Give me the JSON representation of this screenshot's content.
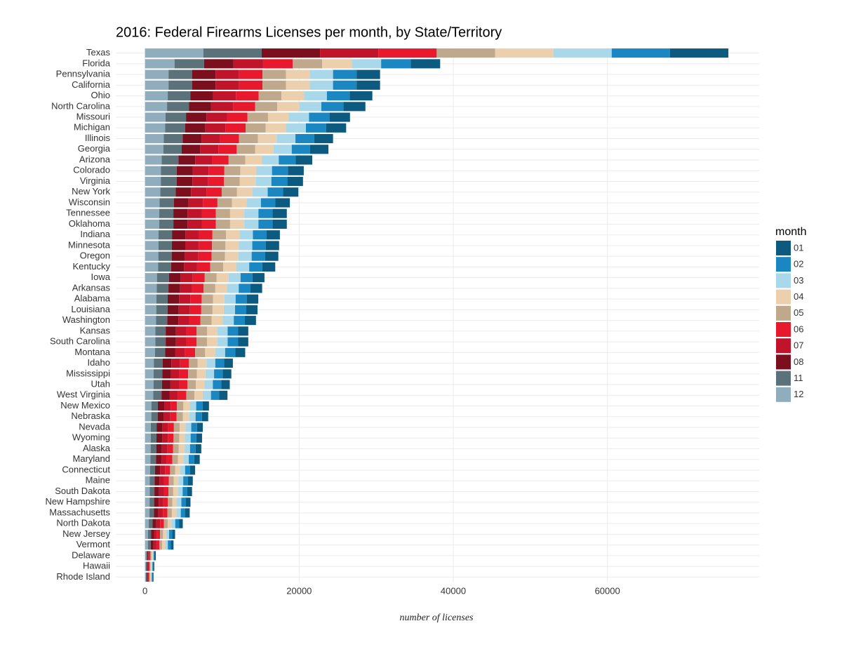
{
  "chart_data": {
    "type": "stacked-barh",
    "title": "2016: Federal Firearms Licenses per month, by State/Territory",
    "x_label": "number of licenses",
    "legend_title": "month",
    "categories": [
      "Texas",
      "Florida",
      "Pennsylvania",
      "California",
      "Ohio",
      "North Carolina",
      "Missouri",
      "Michigan",
      "Illinois",
      "Georgia",
      "Arizona",
      "Colorado",
      "Virginia",
      "New York",
      "Wisconsin",
      "Tennessee",
      "Oklahoma",
      "Indiana",
      "Minnesota",
      "Oregon",
      "Kentucky",
      "Iowa",
      "Arkansas",
      "Alabama",
      "Louisiana",
      "Washington",
      "Kansas",
      "South Carolina",
      "Montana",
      "Idaho",
      "Mississippi",
      "Utah",
      "West Virginia",
      "New Mexico",
      "Nebraska",
      "Nevada",
      "Wyoming",
      "Alaska",
      "Maryland",
      "Connecticut",
      "Maine",
      "South Dakota",
      "New Hampshire",
      "Massachusetts",
      "North Dakota",
      "New Jersey",
      "Vermont",
      "Delaware",
      "Hawaii",
      "Rhode Island"
    ],
    "series": [
      {
        "name": "01",
        "color": "#0d5a80",
        "values": [
          7570,
          3830,
          3050,
          3050,
          2950,
          2860,
          2660,
          2610,
          2440,
          2380,
          2170,
          2060,
          2050,
          1990,
          1880,
          1840,
          1840,
          1750,
          1740,
          1730,
          1690,
          1550,
          1520,
          1470,
          1460,
          1440,
          1340,
          1340,
          1300,
          1140,
          1120,
          1100,
          1070,
          830,
          820,
          750,
          740,
          730,
          710,
          650,
          620,
          610,
          590,
          580,
          490,
          390,
          370,
          140,
          120,
          110
        ]
      },
      {
        "name": "02",
        "color": "#1a87c2",
        "values": [
          7570,
          3830,
          3050,
          3050,
          2950,
          2860,
          2660,
          2610,
          2440,
          2380,
          2170,
          2060,
          2050,
          1990,
          1880,
          1840,
          1840,
          1750,
          1740,
          1730,
          1690,
          1550,
          1520,
          1470,
          1460,
          1440,
          1340,
          1340,
          1300,
          1140,
          1120,
          1100,
          1070,
          830,
          820,
          750,
          740,
          730,
          710,
          650,
          620,
          610,
          590,
          580,
          490,
          390,
          370,
          140,
          120,
          110
        ]
      },
      {
        "name": "03",
        "color": "#a9d8ea",
        "values": [
          7570,
          3830,
          3050,
          3050,
          2950,
          2860,
          2660,
          2610,
          2440,
          2380,
          2170,
          2060,
          2050,
          1990,
          1880,
          1840,
          1840,
          1750,
          1740,
          1730,
          1690,
          1550,
          1520,
          1470,
          1460,
          1440,
          1340,
          1340,
          1300,
          1140,
          1120,
          1100,
          1070,
          830,
          820,
          750,
          740,
          730,
          710,
          650,
          620,
          610,
          590,
          580,
          490,
          390,
          370,
          140,
          120,
          110
        ]
      },
      {
        "name": "04",
        "color": "#ecd0ad",
        "values": [
          7570,
          3830,
          3050,
          3050,
          2950,
          2860,
          2660,
          2610,
          2440,
          2380,
          2170,
          2060,
          2050,
          1990,
          1880,
          1840,
          1840,
          1750,
          1740,
          1730,
          1690,
          1550,
          1520,
          1470,
          1460,
          1440,
          1340,
          1340,
          1300,
          1140,
          1120,
          1100,
          1070,
          830,
          820,
          750,
          740,
          730,
          710,
          650,
          620,
          610,
          590,
          580,
          490,
          390,
          370,
          140,
          120,
          110
        ]
      },
      {
        "name": "05",
        "color": "#c0a88c",
        "values": [
          7570,
          3830,
          3050,
          3050,
          2950,
          2860,
          2660,
          2610,
          2440,
          2380,
          2170,
          2060,
          2050,
          1990,
          1880,
          1840,
          1840,
          1750,
          1740,
          1730,
          1690,
          1550,
          1520,
          1470,
          1460,
          1440,
          1340,
          1340,
          1300,
          1140,
          1120,
          1100,
          1070,
          830,
          820,
          750,
          740,
          730,
          710,
          650,
          620,
          610,
          590,
          580,
          490,
          390,
          370,
          140,
          120,
          110
        ]
      },
      {
        "name": "06",
        "color": "#e8192c",
        "values": [
          7570,
          3830,
          3050,
          3050,
          2950,
          2860,
          2660,
          2610,
          2440,
          2380,
          2170,
          2060,
          2050,
          1990,
          1880,
          1840,
          1840,
          1750,
          1740,
          1730,
          1690,
          1550,
          1520,
          1470,
          1460,
          1440,
          1340,
          1340,
          1300,
          1140,
          1120,
          1100,
          1070,
          830,
          820,
          750,
          740,
          730,
          710,
          650,
          620,
          610,
          590,
          580,
          490,
          390,
          370,
          140,
          120,
          110
        ]
      },
      {
        "name": "07",
        "color": "#c0142a",
        "values": [
          7570,
          3830,
          3050,
          3050,
          2950,
          2860,
          2660,
          2610,
          2440,
          2380,
          2170,
          2060,
          2050,
          1990,
          1880,
          1840,
          1840,
          1750,
          1740,
          1730,
          1690,
          1550,
          1520,
          1470,
          1460,
          1440,
          1340,
          1340,
          1300,
          1140,
          1120,
          1100,
          1070,
          830,
          820,
          750,
          740,
          730,
          710,
          650,
          620,
          610,
          590,
          580,
          490,
          390,
          370,
          140,
          120,
          110
        ]
      },
      {
        "name": "08",
        "color": "#7b0f1e",
        "values": [
          7570,
          3830,
          3050,
          3050,
          2950,
          2860,
          2660,
          2610,
          2440,
          2380,
          2170,
          2060,
          2050,
          1990,
          1880,
          1840,
          1840,
          1750,
          1740,
          1730,
          1690,
          1550,
          1520,
          1470,
          1460,
          1440,
          1340,
          1340,
          1300,
          1140,
          1120,
          1100,
          1070,
          830,
          820,
          750,
          740,
          730,
          710,
          650,
          620,
          610,
          590,
          580,
          490,
          390,
          370,
          140,
          120,
          110
        ]
      },
      {
        "name": "11",
        "color": "#5b727b",
        "values": [
          7570,
          3830,
          3050,
          3050,
          2950,
          2860,
          2660,
          2610,
          2440,
          2380,
          2170,
          2060,
          2050,
          1990,
          1880,
          1840,
          1840,
          1750,
          1740,
          1730,
          1690,
          1550,
          1520,
          1470,
          1460,
          1440,
          1340,
          1340,
          1300,
          1140,
          1120,
          1100,
          1070,
          830,
          820,
          750,
          740,
          730,
          710,
          650,
          620,
          610,
          590,
          580,
          490,
          390,
          370,
          140,
          120,
          110
        ]
      },
      {
        "name": "12",
        "color": "#8fadbc",
        "values": [
          7570,
          3830,
          3050,
          3050,
          2950,
          2860,
          2660,
          2610,
          2440,
          2380,
          2170,
          2060,
          2050,
          1990,
          1880,
          1840,
          1840,
          1750,
          1740,
          1730,
          1690,
          1550,
          1520,
          1470,
          1460,
          1440,
          1340,
          1340,
          1300,
          1140,
          1120,
          1100,
          1070,
          830,
          820,
          750,
          740,
          730,
          710,
          650,
          620,
          610,
          590,
          580,
          490,
          390,
          370,
          140,
          120,
          110
        ]
      }
    ],
    "xlim": [
      -3795,
      79700
    ],
    "xticks": [
      0,
      20000,
      40000,
      60000
    ],
    "grid": true
  }
}
